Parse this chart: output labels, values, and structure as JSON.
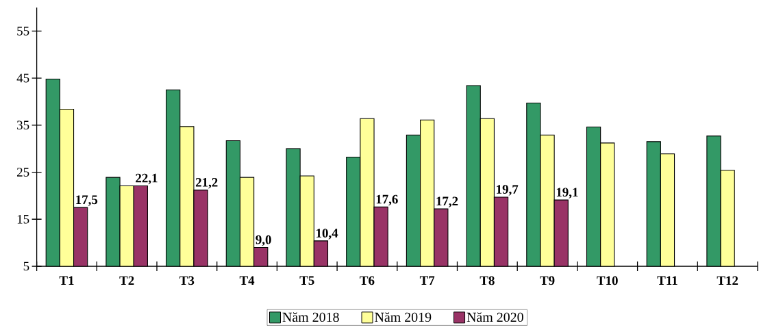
{
  "chart_data": {
    "type": "bar",
    "categories": [
      "T1",
      "T2",
      "T3",
      "T4",
      "T5",
      "T6",
      "T7",
      "T8",
      "T9",
      "T10",
      "T11",
      "T12"
    ],
    "series": [
      {
        "name": "Năm 2018",
        "color": "#339966",
        "values": [
          44.8,
          23.9,
          42.5,
          31.7,
          30.0,
          28.2,
          32.9,
          43.4,
          39.7,
          34.6,
          31.5,
          32.7
        ]
      },
      {
        "name": "Năm 2019",
        "color": "#ffff99",
        "values": [
          38.4,
          22.1,
          34.7,
          23.9,
          24.2,
          36.4,
          36.1,
          36.4,
          32.9,
          31.2,
          28.9,
          25.4
        ]
      },
      {
        "name": "Năm 2020",
        "color": "#993366",
        "values": [
          17.5,
          22.1,
          21.2,
          9.0,
          10.4,
          17.6,
          17.2,
          19.7,
          19.1,
          null,
          null,
          null
        ],
        "value_labels": [
          "17,5",
          "22,1",
          "21,2",
          "9,0",
          "10,4",
          "17,6",
          "17,2",
          "19,7",
          "19,1",
          null,
          null,
          null
        ]
      }
    ],
    "ylim": [
      5,
      60
    ],
    "yticks": [
      5,
      15,
      25,
      35,
      45,
      55
    ],
    "grid": false,
    "legend": "bottom"
  }
}
